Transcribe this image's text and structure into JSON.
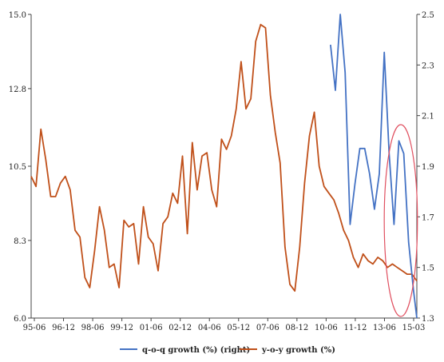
{
  "chart_data": {
    "type": "line",
    "title": "",
    "xlabel": "",
    "ylabel": "",
    "categories": [
      "95-06",
      "96-12",
      "98-06",
      "99-12",
      "01-06",
      "02-12",
      "04-06",
      "05-12",
      "07-06",
      "08-12",
      "10-06",
      "11-12",
      "13-06",
      "15-03"
    ],
    "y_left": {
      "ticks": [
        "6.0",
        "8.3",
        "10.5",
        "12.8",
        "15.0"
      ],
      "ylim": [
        6.0,
        15.0
      ]
    },
    "y_right": {
      "ticks": [
        "1.3",
        "1.5",
        "1.7",
        "1.9",
        "2.1",
        "2.3",
        "2.5"
      ],
      "ylim": [
        1.3,
        2.5
      ]
    },
    "grid": false,
    "legend_position": "bottom",
    "series": [
      {
        "name": "y-o-y growth (%)",
        "axis": "left",
        "color": "#c0501a",
        "x": [
          1995.42,
          1995.67,
          1995.92,
          1996.17,
          1996.42,
          1996.67,
          1996.92,
          1997.17,
          1997.42,
          1997.67,
          1997.92,
          1998.17,
          1998.42,
          1998.67,
          1998.92,
          1999.17,
          1999.42,
          1999.67,
          1999.92,
          2000.17,
          2000.42,
          2000.67,
          2000.92,
          2001.17,
          2001.42,
          2001.67,
          2001.92,
          2002.17,
          2002.42,
          2002.67,
          2002.92,
          2003.17,
          2003.42,
          2003.67,
          2003.92,
          2004.17,
          2004.42,
          2004.67,
          2004.92,
          2005.17,
          2005.42,
          2005.67,
          2005.92,
          2006.17,
          2006.42,
          2006.67,
          2006.92,
          2007.17,
          2007.42,
          2007.67,
          2007.92,
          2008.17,
          2008.42,
          2008.67,
          2008.92,
          2009.17,
          2009.42,
          2009.67,
          2009.92,
          2010.17,
          2010.42,
          2010.67,
          2010.92,
          2011.17,
          2011.42,
          2011.67,
          2011.92,
          2012.17,
          2012.42,
          2012.67,
          2012.92,
          2013.17,
          2013.42,
          2013.67,
          2013.92,
          2014.17,
          2014.42,
          2014.67,
          2014.92,
          2015.17
        ],
        "values": [
          10.2,
          9.9,
          11.6,
          10.7,
          9.6,
          9.6,
          10.0,
          10.2,
          9.8,
          8.6,
          8.4,
          7.2,
          6.9,
          8.0,
          9.3,
          8.6,
          7.5,
          7.6,
          6.9,
          8.9,
          8.7,
          8.8,
          7.6,
          9.3,
          8.4,
          8.2,
          7.4,
          8.8,
          9.0,
          9.7,
          9.4,
          10.8,
          8.5,
          11.2,
          9.8,
          10.8,
          10.9,
          9.8,
          9.3,
          11.3,
          11.0,
          11.4,
          12.2,
          13.6,
          12.2,
          12.5,
          14.2,
          14.7,
          14.6,
          12.6,
          11.5,
          10.6,
          8.1,
          7.0,
          6.8,
          8.1,
          10.0,
          11.4,
          12.1,
          10.5,
          9.9,
          9.7,
          9.5,
          9.1,
          8.6,
          8.3,
          7.8,
          7.5,
          7.9,
          7.7,
          7.6,
          7.8,
          7.7,
          7.5,
          7.6,
          7.5,
          7.4,
          7.3,
          7.3,
          7.1
        ]
      },
      {
        "name": "q-o-q growth (%) (right)",
        "axis": "right",
        "color": "#4472c4",
        "x": [
          2010.75,
          2011.0,
          2011.25,
          2011.5,
          2011.75,
          2012.0,
          2012.25,
          2012.5,
          2012.75,
          2013.0,
          2013.25,
          2013.5,
          2013.75,
          2014.0,
          2014.25,
          2014.5,
          2014.75,
          2015.0,
          2015.17
        ],
        "values": [
          2.38,
          2.2,
          2.5,
          2.27,
          1.67,
          1.83,
          1.97,
          1.97,
          1.87,
          1.73,
          1.87,
          2.35,
          1.95,
          1.67,
          2.0,
          1.95,
          1.6,
          1.41,
          1.3
        ]
      }
    ],
    "annotations": [
      {
        "shape": "ellipse",
        "color": "#e05060",
        "around_x": [
          2013.5,
          2015.2
        ]
      }
    ]
  }
}
